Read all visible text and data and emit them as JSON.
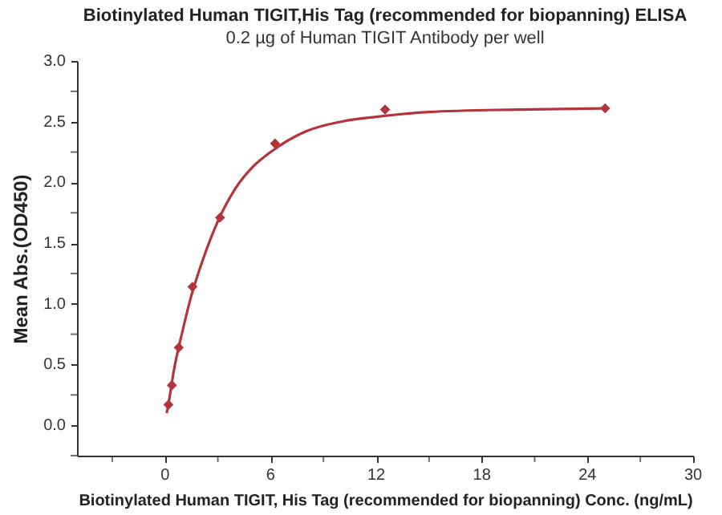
{
  "chart_data": {
    "type": "scatter",
    "title": "Biotinylated Human TIGIT,His Tag (recommended for biopanning) ELISA",
    "subtitle": "0.2 µg of Human TIGIT Antibody per well",
    "xlabel": "Biotinylated Human TIGIT, His Tag (recommended for biopanning) Conc. (ng/mL)",
    "ylabel": "Mean Abs.(OD450)",
    "x": [
      0.195,
      0.39,
      0.78,
      1.56,
      3.125,
      6.25,
      12.5,
      25
    ],
    "series": [
      {
        "type": "scatter",
        "color": "#b5333a",
        "marker": "diamond",
        "values": [
          0.17,
          0.33,
          0.64,
          1.14,
          1.71,
          2.32,
          2.6,
          2.61
        ]
      },
      {
        "type": "line",
        "color": "#b5333a",
        "line_style": "solid",
        "x": [
          0.1,
          0.2,
          0.5,
          1,
          1.5,
          2,
          3,
          4,
          5,
          6,
          8,
          10,
          12,
          15,
          20,
          25
        ],
        "values": [
          0.1,
          0.18,
          0.45,
          0.78,
          1.07,
          1.3,
          1.68,
          1.95,
          2.13,
          2.25,
          2.42,
          2.5,
          2.54,
          2.58,
          2.6,
          2.61
        ]
      }
    ],
    "xlim": [
      -5,
      30
    ],
    "xticks": [
      {
        "value": -3,
        "label": null
      },
      0,
      {
        "value": 3,
        "label": null
      },
      6,
      {
        "value": 9,
        "label": null
      },
      12,
      {
        "value": 15,
        "label": null
      },
      18,
      {
        "value": 21,
        "label": null
      },
      24,
      {
        "value": 27,
        "label": null
      },
      30
    ],
    "ylim": [
      -0.25,
      3.0
    ],
    "yticks": [
      {
        "value": -0.25,
        "label": null
      },
      {
        "value": 0,
        "label": "0.0"
      },
      {
        "value": 0.25,
        "label": null
      },
      0.5,
      {
        "value": 0.75,
        "label": null
      },
      {
        "value": 1,
        "label": "1.0"
      },
      {
        "value": 1.25,
        "label": null
      },
      1.5,
      {
        "value": 1.75,
        "label": null
      },
      {
        "value": 2,
        "label": "2.0"
      },
      {
        "value": 2.25,
        "label": null
      },
      2.5,
      {
        "value": 2.75,
        "label": null
      },
      {
        "value": 3,
        "label": "3.0"
      }
    ],
    "grid": false
  }
}
